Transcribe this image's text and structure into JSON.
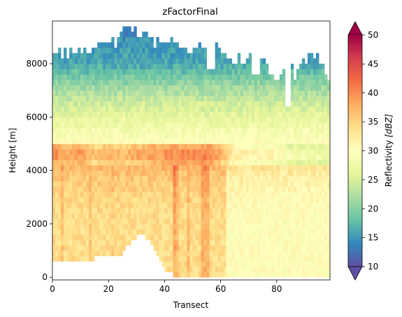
{
  "chart_data": {
    "type": "heatmap",
    "title": "zFactorFinal",
    "xlabel": "Transect",
    "ylabel": "Height [m]",
    "xlim": [
      0,
      99
    ],
    "ylim": [
      -100,
      9600
    ],
    "x_ticks": [
      0,
      20,
      40,
      60,
      80
    ],
    "y_ticks": [
      0,
      2000,
      4000,
      6000,
      8000
    ],
    "grid": false,
    "colorbar": {
      "label_text": "Reflectivity ",
      "label_units": "[dBZ]",
      "min": 10,
      "max": 50,
      "ticks": [
        10,
        15,
        20,
        25,
        30,
        35,
        40,
        45,
        50
      ],
      "extend": "both",
      "colormap": "Spectral_r",
      "colors": [
        "#5e4fa2",
        "#3288bd",
        "#66c2a5",
        "#abdda4",
        "#e6f598",
        "#ffffbf",
        "#fee08b",
        "#fdae61",
        "#f46d43",
        "#d53e4f",
        "#9e0142"
      ]
    },
    "x_step": 1,
    "height_step_m": 200,
    "columns": {
      "transect": [
        0,
        5,
        10,
        15,
        20,
        25,
        27,
        30,
        33,
        35,
        38,
        40,
        45,
        50,
        55,
        60,
        65,
        70,
        75,
        80,
        85,
        86,
        88,
        90,
        95,
        99
      ],
      "bottom_height_m": [
        600,
        600,
        500,
        700,
        800,
        800,
        1200,
        1500,
        1500,
        1300,
        800,
        300,
        0,
        0,
        0,
        -100,
        -100,
        -100,
        -100,
        -100,
        -100,
        -100,
        -100,
        -100,
        -100,
        -100
      ],
      "top_height_m": [
        8400,
        8500,
        8400,
        8500,
        8700,
        9000,
        9400,
        9300,
        9200,
        8900,
        8800,
        8900,
        8700,
        8400,
        8600,
        8500,
        8200,
        8300,
        8200,
        7400,
        8200,
        7400,
        7800,
        8000,
        8400,
        7200
      ],
      "bright_band_peak_dbz": [
        41,
        39,
        40,
        37,
        39,
        37,
        38,
        39,
        39,
        40,
        40,
        40,
        41,
        41,
        42,
        38,
        33,
        32,
        32,
        32,
        29,
        29,
        29,
        29,
        29,
        29
      ]
    },
    "vertical_profile": {
      "height_m": [
        0,
        1000,
        2000,
        3000,
        3800,
        4300,
        4600,
        4800,
        5000,
        5600,
        6400,
        7200,
        8000,
        8800,
        9400
      ],
      "reflectivity_dbz": [
        34,
        34,
        34,
        34.5,
        36,
        38,
        39,
        39,
        30,
        28,
        25,
        21,
        16,
        15,
        13
      ]
    },
    "enhanced_columns": [
      {
        "transect": 3,
        "offset_dbz": 2
      },
      {
        "transect": 13,
        "offset_dbz": 1.5
      },
      {
        "transect": 21,
        "offset_dbz": 1
      },
      {
        "transect": 43,
        "offset_dbz": 4
      },
      {
        "transect": 44,
        "offset_dbz": 3
      },
      {
        "transect": 48,
        "offset_dbz": 2.5
      },
      {
        "transect": 53,
        "offset_dbz": 3.5
      },
      {
        "transect": 54,
        "offset_dbz": 3.5
      },
      {
        "transect": 55,
        "offset_dbz": 3
      }
    ],
    "convective_region": {
      "transect_from": 62,
      "transect_to": 99,
      "offset_dbz": -4
    },
    "top_gaps": [
      {
        "transect_from": 55,
        "transect_to": 57,
        "top_height_m": 7800
      },
      {
        "transect_from": 71,
        "transect_to": 73,
        "top_height_m": 7600
      },
      {
        "transect_from": 83,
        "transect_to": 84,
        "top_height_m": 6400
      }
    ]
  }
}
